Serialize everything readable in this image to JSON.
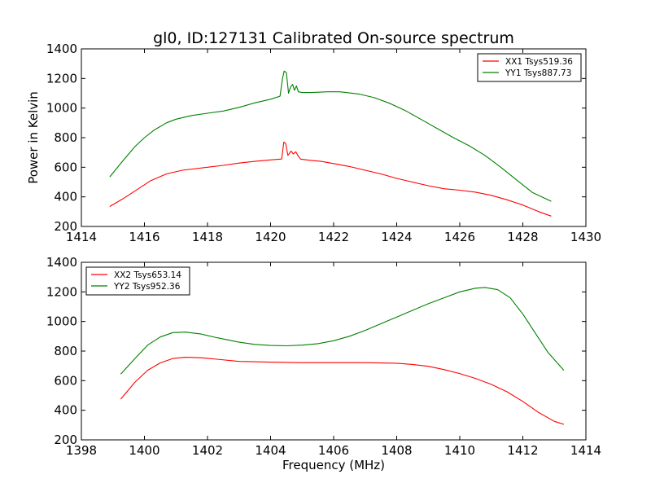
{
  "figure": {
    "title": "gl0, ID:127131 Calibrated On-source spectrum",
    "ylabel": "Power in Kelvin",
    "xlabel": "Frequency (MHz)"
  },
  "chart_data": [
    {
      "type": "line",
      "xlim": [
        1414,
        1430
      ],
      "ylim": [
        200,
        1400
      ],
      "xticks": [
        1414,
        1416,
        1418,
        1420,
        1422,
        1424,
        1426,
        1428,
        1430
      ],
      "yticks": [
        200,
        400,
        600,
        800,
        1000,
        1200,
        1400
      ],
      "legend": "top-right",
      "grid": false,
      "series": [
        {
          "name": "XX1 Tsys519.36",
          "color": "#ff0000",
          "x": [
            1414.9,
            1415.3,
            1415.7,
            1416.2,
            1416.7,
            1417.2,
            1418.0,
            1418.5,
            1419.0,
            1419.5,
            1420.0,
            1420.35,
            1420.42,
            1420.48,
            1420.55,
            1420.65,
            1420.72,
            1420.8,
            1420.88,
            1420.95,
            1421.2,
            1421.6,
            1422.0,
            1422.5,
            1423.0,
            1423.5,
            1424.0,
            1424.5,
            1425.0,
            1425.5,
            1426.0,
            1426.5,
            1427.0,
            1427.5,
            1428.0,
            1428.5,
            1428.9
          ],
          "y": [
            335,
            385,
            440,
            510,
            555,
            580,
            600,
            613,
            628,
            640,
            650,
            656,
            770,
            760,
            680,
            710,
            690,
            705,
            675,
            655,
            648,
            640,
            625,
            605,
            580,
            555,
            525,
            500,
            475,
            455,
            445,
            432,
            410,
            380,
            345,
            300,
            270
          ]
        },
        {
          "name": "YY1 Tsys887.73",
          "color": "#008000",
          "x": [
            1414.9,
            1415.3,
            1415.7,
            1416.0,
            1416.3,
            1416.7,
            1417.0,
            1417.5,
            1418.0,
            1418.5,
            1419.0,
            1419.5,
            1420.0,
            1420.3,
            1420.38,
            1420.43,
            1420.5,
            1420.57,
            1420.63,
            1420.7,
            1420.76,
            1420.82,
            1420.88,
            1421.0,
            1421.3,
            1421.8,
            1422.2,
            1422.8,
            1423.3,
            1423.8,
            1424.3,
            1424.8,
            1425.3,
            1425.8,
            1426.3,
            1426.8,
            1427.3,
            1427.8,
            1428.3,
            1428.9
          ],
          "y": [
            535,
            640,
            740,
            800,
            850,
            900,
            925,
            950,
            965,
            980,
            1005,
            1035,
            1060,
            1080,
            1200,
            1250,
            1240,
            1100,
            1140,
            1160,
            1120,
            1150,
            1110,
            1105,
            1105,
            1110,
            1110,
            1095,
            1070,
            1030,
            980,
            920,
            860,
            800,
            745,
            680,
            600,
            515,
            430,
            370
          ]
        }
      ]
    },
    {
      "type": "line",
      "xlim": [
        1398,
        1414
      ],
      "ylim": [
        200,
        1400
      ],
      "xticks": [
        1398,
        1400,
        1402,
        1404,
        1406,
        1408,
        1410,
        1412,
        1414
      ],
      "yticks": [
        200,
        400,
        600,
        800,
        1000,
        1200,
        1400
      ],
      "legend": "top-left",
      "grid": false,
      "series": [
        {
          "name": "XX2 Tsys653.14",
          "color": "#ff0000",
          "x": [
            1399.25,
            1399.7,
            1400.1,
            1400.5,
            1400.9,
            1401.3,
            1401.8,
            1402.3,
            1403.0,
            1404.0,
            1405.0,
            1406.0,
            1407.0,
            1408.0,
            1408.5,
            1409.0,
            1409.5,
            1410.0,
            1410.5,
            1411.0,
            1411.5,
            1412.0,
            1412.5,
            1413.0,
            1413.3
          ],
          "y": [
            475,
            590,
            670,
            720,
            750,
            758,
            755,
            745,
            730,
            725,
            722,
            722,
            722,
            718,
            710,
            697,
            675,
            648,
            615,
            575,
            525,
            460,
            385,
            325,
            305
          ]
        },
        {
          "name": "YY2 Tsys952.36",
          "color": "#008000",
          "x": [
            1399.25,
            1399.7,
            1400.1,
            1400.5,
            1400.9,
            1401.3,
            1401.8,
            1402.3,
            1403.0,
            1403.5,
            1404.0,
            1404.5,
            1405.0,
            1405.5,
            1406.0,
            1406.5,
            1407.0,
            1407.5,
            1408.0,
            1408.5,
            1409.0,
            1409.5,
            1410.0,
            1410.5,
            1410.8,
            1411.2,
            1411.6,
            1412.0,
            1412.4,
            1412.8,
            1413.3
          ],
          "y": [
            645,
            750,
            840,
            895,
            925,
            928,
            915,
            890,
            860,
            845,
            838,
            836,
            840,
            850,
            870,
            900,
            940,
            985,
            1030,
            1075,
            1120,
            1160,
            1200,
            1225,
            1230,
            1215,
            1160,
            1050,
            920,
            790,
            670
          ]
        }
      ]
    }
  ]
}
